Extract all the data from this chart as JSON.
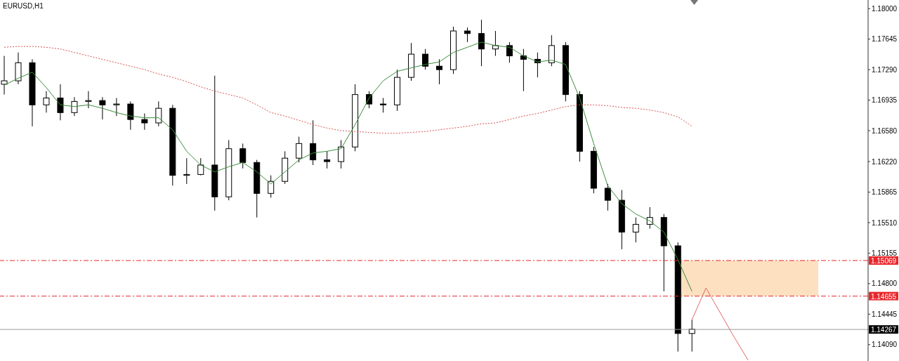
{
  "chart_data": {
    "type": "candlestick",
    "title": "EURUSD,H1",
    "categories": [
      null,
      null,
      null,
      null,
      null,
      null,
      null,
      null,
      null,
      null,
      null,
      null,
      null,
      null,
      null,
      null,
      null,
      null,
      null,
      null,
      null,
      null,
      null,
      null,
      null,
      null,
      null,
      null,
      null,
      null,
      null,
      null,
      null,
      null,
      null,
      null,
      null,
      null,
      null,
      null,
      null,
      null,
      null,
      null,
      null,
      null,
      null,
      null,
      null,
      null,
      null,
      null,
      null,
      null,
      null,
      null,
      null,
      null,
      null,
      null,
      null,
      null
    ],
    "color": "#000000",
    "ohlc": [
      [
        1.1712,
        1.1745,
        1.17,
        1.1716
      ],
      [
        1.1716,
        1.1749,
        1.1712,
        1.1737
      ],
      [
        1.1737,
        1.1741,
        1.1663,
        1.1688
      ],
      [
        1.1688,
        1.1704,
        1.1679,
        1.1696
      ],
      [
        1.1696,
        1.1712,
        1.167,
        1.1679
      ],
      [
        1.1679,
        1.1697,
        1.1675,
        1.1692
      ],
      [
        1.1692,
        1.1704,
        1.1684,
        1.1693
      ],
      [
        1.1693,
        1.1697,
        1.1671,
        1.1688
      ],
      [
        1.1688,
        1.1696,
        1.1675,
        1.1689
      ],
      [
        1.1689,
        1.1692,
        1.1659,
        1.1671
      ],
      [
        1.1671,
        1.1678,
        1.1659,
        1.1667
      ],
      [
        1.1667,
        1.1692,
        1.1663,
        1.1684
      ],
      [
        1.1684,
        1.1688,
        1.1594,
        1.1606
      ],
      [
        1.1606,
        1.1626,
        1.1596,
        1.1607
      ],
      [
        1.1607,
        1.1626,
        1.1606,
        1.1618
      ],
      [
        1.1618,
        1.1722,
        1.1565,
        1.1581
      ],
      [
        1.1581,
        1.1647,
        1.1577,
        1.1637
      ],
      [
        1.1637,
        1.1643,
        1.1614,
        1.1621
      ],
      [
        1.1621,
        1.1624,
        1.1557,
        1.1585
      ],
      [
        1.1585,
        1.1606,
        1.158,
        1.1599
      ],
      [
        1.1599,
        1.1634,
        1.1596,
        1.1626
      ],
      [
        1.1626,
        1.1651,
        1.1621,
        1.1643
      ],
      [
        1.1643,
        1.167,
        1.1618,
        1.1624
      ],
      [
        1.1624,
        1.1634,
        1.1614,
        1.1622
      ],
      [
        1.1622,
        1.1647,
        1.1614,
        1.1639
      ],
      [
        1.1639,
        1.1712,
        1.1634,
        1.17
      ],
      [
        1.17,
        1.1704,
        1.1684,
        1.1689
      ],
      [
        1.1689,
        1.1696,
        1.1679,
        1.1688
      ],
      [
        1.1688,
        1.1729,
        1.1681,
        1.172
      ],
      [
        1.172,
        1.176,
        1.1716,
        1.1747
      ],
      [
        1.1747,
        1.1753,
        1.1729,
        1.1733
      ],
      [
        1.1733,
        1.1741,
        1.1712,
        1.1729
      ],
      [
        1.1729,
        1.1779,
        1.1724,
        1.1774
      ],
      [
        1.1774,
        1.1778,
        1.1761,
        1.1771
      ],
      [
        1.1771,
        1.1787,
        1.1733,
        1.1753
      ],
      [
        1.1753,
        1.1774,
        1.1745,
        1.1757
      ],
      [
        1.1757,
        1.1761,
        1.1737,
        1.1745
      ],
      [
        1.1745,
        1.1753,
        1.1704,
        1.1741
      ],
      [
        1.1741,
        1.1749,
        1.172,
        1.1737
      ],
      [
        1.1737,
        1.1769,
        1.1733,
        1.1757
      ],
      [
        1.1757,
        1.1761,
        1.1692,
        1.17
      ],
      [
        1.17,
        1.1704,
        1.1622,
        1.1634
      ],
      [
        1.1634,
        1.1639,
        1.1585,
        1.1591
      ],
      [
        1.1591,
        1.1596,
        1.1565,
        1.1577
      ],
      [
        1.1577,
        1.1589,
        1.152,
        1.154
      ],
      [
        1.154,
        1.1557,
        1.1528,
        1.1549
      ],
      [
        1.1549,
        1.1569,
        1.1544,
        1.1557
      ],
      [
        1.1557,
        1.1561,
        1.1471,
        1.1524
      ],
      [
        1.1524,
        1.1528,
        1.1401,
        1.1422
      ],
      [
        1.1422,
        1.1438,
        1.1401,
        1.1427
      ],
      null,
      null,
      null,
      null,
      null,
      null,
      null,
      null,
      null,
      null,
      null,
      null
    ],
    "series": [
      {
        "type": "line",
        "color": "#3c8c3c",
        "line_style": "solid",
        "values": [
          1.1711,
          1.1719,
          1.1726,
          1.1708,
          1.1688,
          1.1686,
          1.1688,
          1.1684,
          1.1679,
          1.1675,
          1.1673,
          1.1673,
          1.1659,
          1.1634,
          1.1618,
          1.161,
          1.1616,
          1.1621,
          1.161,
          1.1596,
          1.161,
          1.1624,
          1.1632,
          1.1634,
          1.1637,
          1.1665,
          1.1696,
          1.1716,
          1.1727,
          1.1731,
          1.1735,
          1.1738,
          1.1749,
          1.1755,
          1.1761,
          1.1757,
          1.1755,
          1.1745,
          1.1738,
          1.174,
          1.1735,
          1.1696,
          1.1643,
          1.1594,
          1.1573,
          1.1561,
          1.1553,
          1.154,
          1.1508,
          1.1471,
          null,
          null,
          null,
          null,
          null,
          null,
          null,
          null,
          null,
          null,
          null,
          null
        ]
      },
      {
        "type": "line",
        "color": "#d9534f",
        "line_style": "dotted",
        "values": [
          1.1755,
          1.1756,
          1.1756,
          1.1755,
          1.1753,
          1.1749,
          1.1745,
          1.1741,
          1.1737,
          1.1733,
          1.1729,
          1.1724,
          1.172,
          1.1715,
          1.1709,
          1.1704,
          1.17,
          1.1696,
          1.1688,
          1.1679,
          1.1675,
          1.167,
          1.1665,
          1.1661,
          1.1658,
          1.1657,
          1.1656,
          1.1655,
          1.1655,
          1.1656,
          1.1657,
          1.1659,
          1.1661,
          1.1663,
          1.1666,
          1.1667,
          1.1671,
          1.1675,
          1.1678,
          1.1682,
          1.1686,
          1.1688,
          1.1688,
          1.1687,
          1.1685,
          1.1684,
          1.1682,
          1.1679,
          1.1674,
          1.1663,
          null,
          null,
          null,
          null,
          null,
          null,
          null,
          null,
          null,
          null,
          null,
          null
        ]
      },
      {
        "type": "line",
        "color": "#e06666",
        "line_style": "solid",
        "values": [
          null,
          null,
          null,
          null,
          null,
          null,
          null,
          null,
          null,
          null,
          null,
          null,
          null,
          null,
          null,
          null,
          null,
          null,
          null,
          null,
          null,
          null,
          null,
          null,
          null,
          null,
          null,
          null,
          null,
          null,
          null,
          null,
          null,
          null,
          null,
          null,
          null,
          null,
          null,
          null,
          null,
          null,
          null,
          null,
          null,
          null,
          null,
          null,
          null,
          1.1438,
          1.1475,
          null,
          1.1418,
          1.1391,
          null,
          null,
          null,
          null,
          null,
          null,
          null,
          null
        ]
      }
    ],
    "ylim": [
      1.139,
      1.181
    ],
    "yticks": [
      {
        "value": 1.18,
        "label": "1.18000"
      },
      {
        "value": 1.17645,
        "label": "1.17645"
      },
      {
        "value": 1.1729,
        "label": "1.17290"
      },
      {
        "value": 1.16935,
        "label": "1.16935"
      },
      {
        "value": 1.1658,
        "label": "1.16580"
      },
      {
        "value": 1.1622,
        "label": "1.16220"
      },
      {
        "value": 1.15865,
        "label": "1.15865"
      },
      {
        "value": 1.1551,
        "label": "1.15510"
      },
      {
        "value": 1.15155,
        "label": "1.15155"
      },
      {
        "value": 1.148,
        "label": "1.14800"
      },
      {
        "value": 1.14445,
        "label": "1.14445"
      },
      {
        "value": 1.1409,
        "label": "1.14090"
      }
    ],
    "tick_labels": "y",
    "ref_lines": [
      {
        "axis": "y",
        "value": 1.15069,
        "label": "1.15069",
        "color": "#e8262b",
        "line_style": "dashed"
      },
      {
        "axis": "y",
        "value": 1.14655,
        "label": "1.14655",
        "color": "#e8262b",
        "line_style": "dashed"
      },
      {
        "axis": "y",
        "value": 1.14267,
        "label": "1.14267",
        "color": "#999999",
        "line_style": "solid"
      }
    ],
    "bands": [
      {
        "axis": "y",
        "from": 1.14655,
        "to": 1.15069,
        "color": "#fde0c0"
      }
    ]
  }
}
